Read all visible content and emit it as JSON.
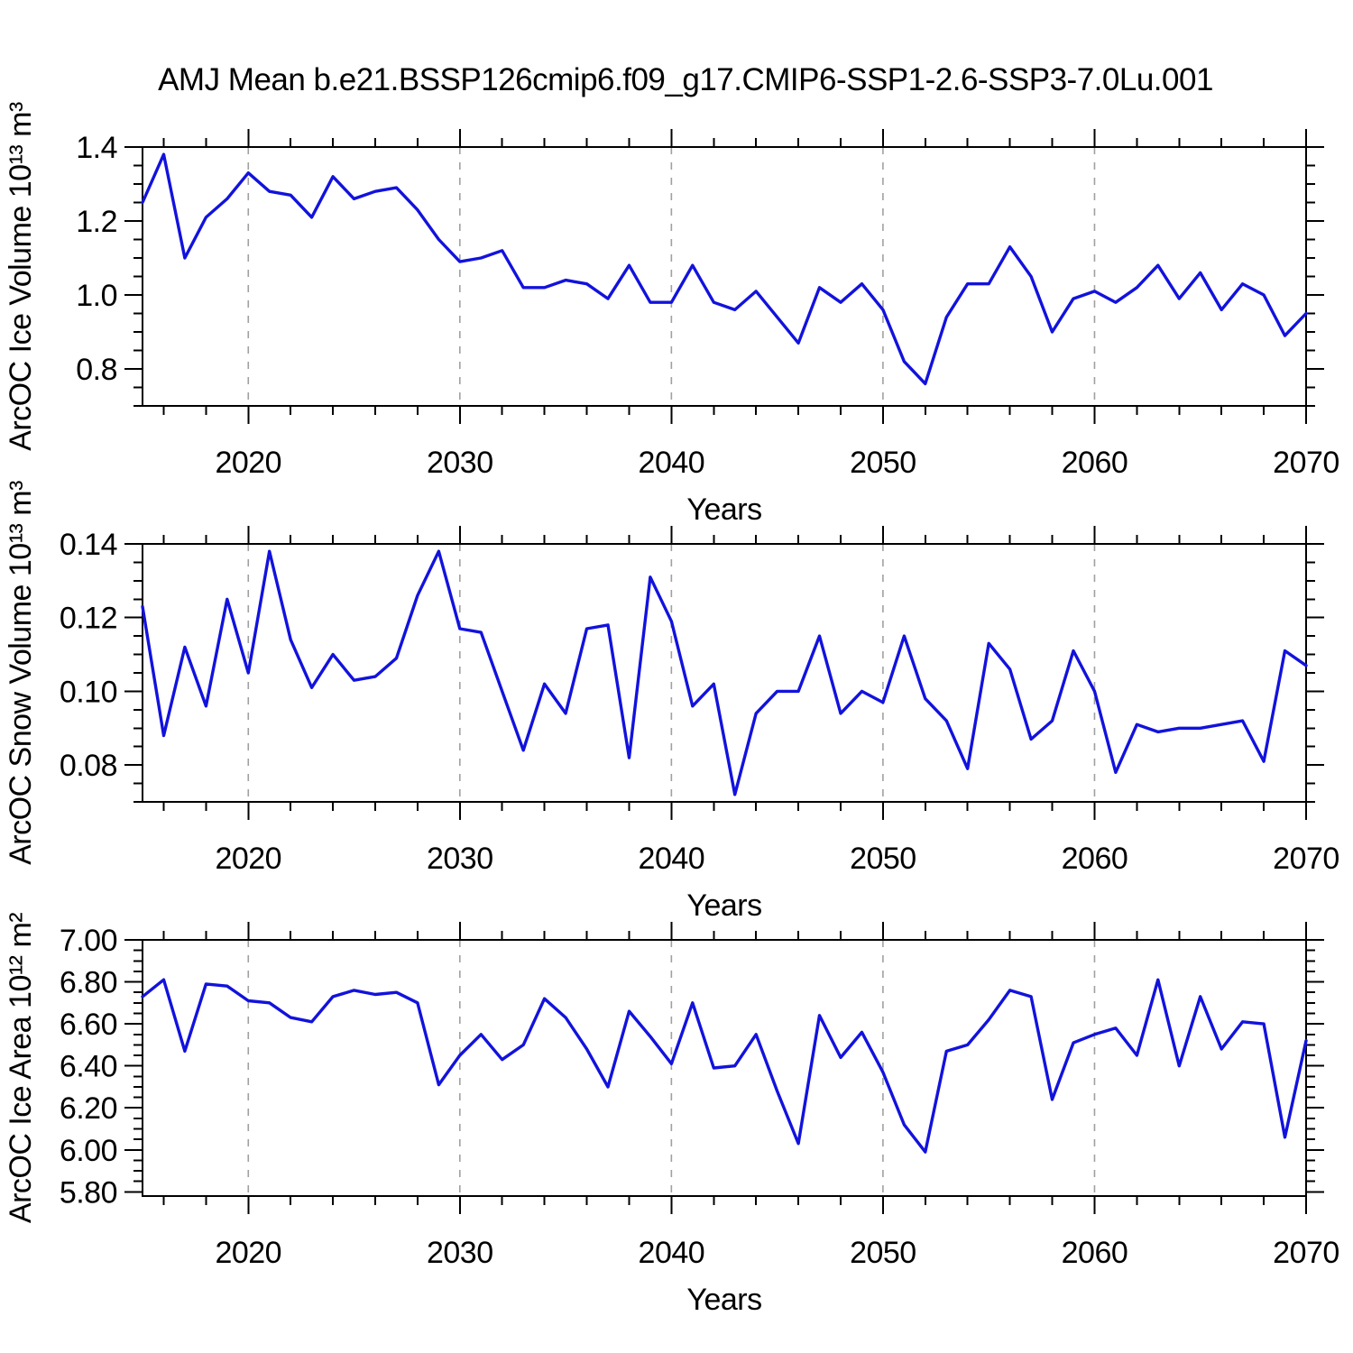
{
  "page": {
    "title": "AMJ Mean b.e21.BSSP126cmip6.f09_g17.CMIP6-SSP1-2.6-SSP3-7.0Lu.001",
    "background_color": "#ffffff",
    "line_color": "#1212dd",
    "gridline_color": "#a0a0a0",
    "axis_color": "#000000"
  },
  "chart_data": [
    {
      "type": "line",
      "name": "ice-volume",
      "ylabel": "ArcOC Ice Volume 10¹³ m³",
      "xlabel": "Years",
      "x_range": [
        2015,
        2070
      ],
      "x_step": 1,
      "ylim": [
        0.7,
        1.4
      ],
      "y_major_ticks": [
        0.8,
        1.0,
        1.2,
        1.4
      ],
      "y_tick_labels": [
        "0.8",
        "1.0",
        "1.2",
        "1.4"
      ],
      "y_minor_step": 0.05,
      "x_major_ticks": [
        2020,
        2030,
        2040,
        2050,
        2060,
        2070
      ],
      "x_tick_labels": [
        "2020",
        "2030",
        "2040",
        "2050",
        "2060",
        "2070"
      ],
      "x_minor_step": 2,
      "grid_x": [
        2020,
        2030,
        2040,
        2050,
        2060
      ],
      "grid_on": true,
      "legend": "none",
      "values": [
        1.25,
        1.38,
        1.1,
        1.21,
        1.26,
        1.33,
        1.28,
        1.27,
        1.21,
        1.32,
        1.26,
        1.28,
        1.29,
        1.23,
        1.15,
        1.09,
        1.1,
        1.12,
        1.02,
        1.02,
        1.04,
        1.03,
        0.99,
        1.08,
        0.98,
        0.98,
        1.08,
        0.98,
        0.96,
        1.01,
        0.94,
        0.87,
        1.02,
        0.98,
        1.03,
        0.96,
        0.82,
        0.76,
        0.94,
        1.03,
        1.03,
        1.13,
        1.05,
        0.9,
        0.99,
        1.01,
        0.98,
        1.02,
        1.08,
        0.99,
        1.06,
        0.96,
        1.03,
        1.0,
        0.89,
        0.95
      ]
    },
    {
      "type": "line",
      "name": "snow-volume",
      "ylabel": "ArcOC Snow Volume 10¹³ m³",
      "xlabel": "Years",
      "x_range": [
        2015,
        2070
      ],
      "x_step": 1,
      "ylim": [
        0.07,
        0.14
      ],
      "y_major_ticks": [
        0.08,
        0.1,
        0.12,
        0.14
      ],
      "y_tick_labels": [
        "0.08",
        "0.10",
        "0.12",
        "0.14"
      ],
      "y_minor_step": 0.005,
      "x_major_ticks": [
        2020,
        2030,
        2040,
        2050,
        2060,
        2070
      ],
      "x_tick_labels": [
        "2020",
        "2030",
        "2040",
        "2050",
        "2060",
        "2070"
      ],
      "x_minor_step": 2,
      "grid_x": [
        2020,
        2030,
        2040,
        2050,
        2060
      ],
      "grid_on": true,
      "legend": "none",
      "values": [
        0.123,
        0.088,
        0.112,
        0.096,
        0.125,
        0.105,
        0.138,
        0.114,
        0.101,
        0.11,
        0.103,
        0.104,
        0.109,
        0.126,
        0.138,
        0.117,
        0.116,
        0.1,
        0.084,
        0.102,
        0.094,
        0.117,
        0.118,
        0.082,
        0.131,
        0.119,
        0.096,
        0.102,
        0.072,
        0.094,
        0.1,
        0.1,
        0.115,
        0.094,
        0.1,
        0.097,
        0.115,
        0.098,
        0.092,
        0.079,
        0.113,
        0.106,
        0.087,
        0.092,
        0.111,
        0.1,
        0.078,
        0.091,
        0.089,
        0.09,
        0.09,
        0.091,
        0.092,
        0.081,
        0.111,
        0.107
      ]
    },
    {
      "type": "line",
      "name": "ice-area",
      "ylabel": "ArcOC Ice Area 10¹² m²",
      "xlabel": "Years",
      "x_range": [
        2015,
        2070
      ],
      "x_step": 1,
      "ylim": [
        5.78,
        7.0
      ],
      "y_major_ticks": [
        5.8,
        6.0,
        6.2,
        6.4,
        6.6,
        6.8,
        7.0
      ],
      "y_tick_labels": [
        "5.80",
        "6.00",
        "6.20",
        "6.40",
        "6.60",
        "6.80",
        "7.00"
      ],
      "y_minor_step": 0.05,
      "x_major_ticks": [
        2020,
        2030,
        2040,
        2050,
        2060,
        2070
      ],
      "x_tick_labels": [
        "2020",
        "2030",
        "2040",
        "2050",
        "2060",
        "2070"
      ],
      "x_minor_step": 2,
      "grid_x": [
        2020,
        2030,
        2040,
        2050,
        2060
      ],
      "grid_on": true,
      "legend": "none",
      "values": [
        6.73,
        6.81,
        6.47,
        6.79,
        6.78,
        6.71,
        6.7,
        6.63,
        6.61,
        6.73,
        6.76,
        6.74,
        6.75,
        6.7,
        6.31,
        6.45,
        6.55,
        6.43,
        6.5,
        6.72,
        6.63,
        6.48,
        6.3,
        6.66,
        6.54,
        6.41,
        6.7,
        6.39,
        6.4,
        6.55,
        6.28,
        6.03,
        6.64,
        6.44,
        6.56,
        6.37,
        6.12,
        5.99,
        6.47,
        6.5,
        6.62,
        6.76,
        6.73,
        6.24,
        6.51,
        6.55,
        6.58,
        6.45,
        6.81,
        6.4,
        6.73,
        6.48,
        6.61,
        6.6,
        6.06,
        6.52
      ]
    }
  ]
}
